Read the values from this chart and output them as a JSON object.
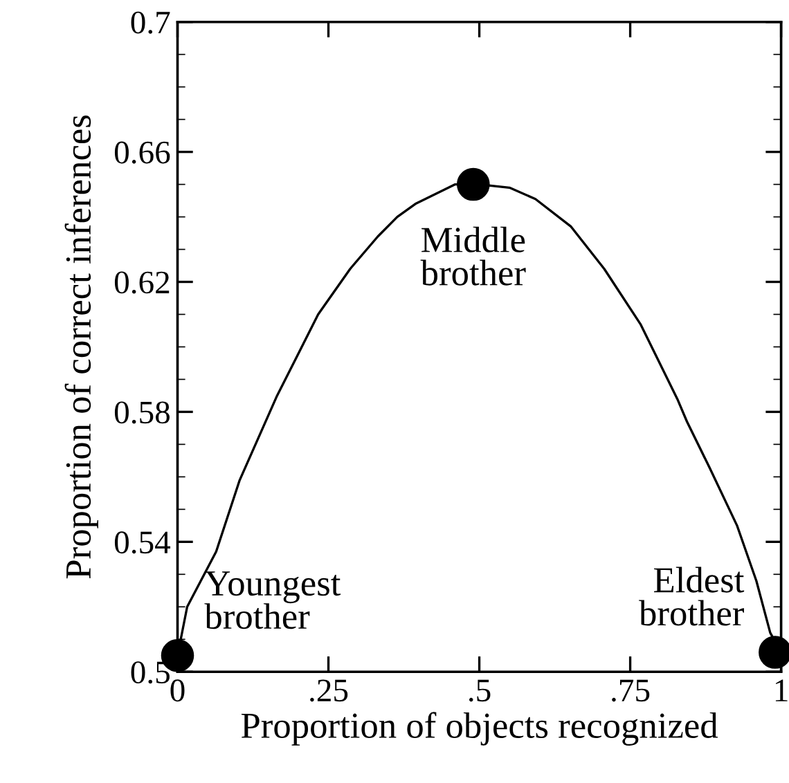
{
  "chart_data": {
    "type": "line",
    "xlabel": "Proportion of objects recognized",
    "ylabel": "Proportion of correct inferences",
    "series": [
      {
        "color": "#000000",
        "marker": "none",
        "x": [
          0,
          0.016,
          0.064,
          0.103,
          0.165,
          0.195,
          0.233,
          0.286,
          0.332,
          0.364,
          0.394,
          0.46,
          0.5,
          0.55,
          0.593,
          0.652,
          0.707,
          0.767,
          0.828,
          0.844,
          0.881,
          0.927,
          0.959,
          0.982,
          1
        ],
        "values": [
          0.505,
          0.52,
          0.537,
          0.559,
          0.585,
          0.596,
          0.61,
          0.624,
          0.634,
          0.64,
          0.644,
          0.65,
          0.65,
          0.649,
          0.6455,
          0.637,
          0.624,
          0.607,
          0.584,
          0.577,
          0.563,
          0.545,
          0.528,
          0.512,
          0.506
        ]
      },
      {
        "type": "scatter",
        "color": "#000000",
        "marker": "circle",
        "x": [
          0,
          0.49,
          0.99
        ],
        "values": [
          0.505,
          0.65,
          0.506
        ]
      }
    ],
    "annotations": [
      {
        "text": "Youngest\nbrother",
        "x": 0,
        "y": 0.505
      },
      {
        "text": "Middle\nbrother",
        "x": 0.49,
        "y": 0.65
      },
      {
        "text": "Eldest\nbrother",
        "x": 0.99,
        "y": 0.506
      }
    ],
    "xlim": [
      0,
      1
    ],
    "ylim": [
      0.5,
      0.7
    ],
    "xticks": [
      0,
      {
        "value": 0.25,
        "label": ".25"
      },
      {
        "value": 0.5,
        "label": ".5"
      },
      {
        "value": 0.75,
        "label": ".75"
      },
      1
    ],
    "yticks": [
      0.5,
      0.54,
      0.58,
      0.62,
      0.66,
      0.7
    ],
    "grid": false,
    "legend": false
  }
}
